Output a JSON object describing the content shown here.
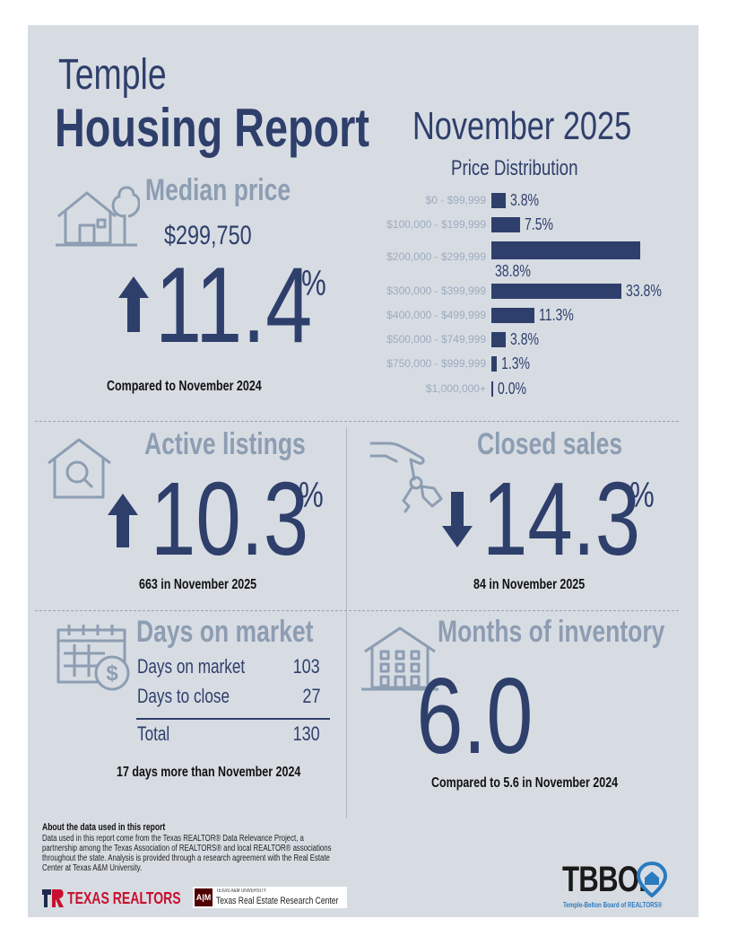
{
  "header": {
    "city": "Temple",
    "title": "Housing Report",
    "period": "November 2025"
  },
  "median_price": {
    "label": "Median price",
    "value": "$299,750",
    "change": "11.4",
    "change_unit": "%",
    "direction": "up",
    "comparison": "Compared to November 2024"
  },
  "price_distribution": {
    "title": "Price Distribution",
    "rows": [
      {
        "range": "$0 - $99,999",
        "percent": 3.8,
        "label": "3.8%"
      },
      {
        "range": "$100,000 - $199,999",
        "percent": 7.5,
        "label": "7.5%"
      },
      {
        "range": "$200,000 - $299,999",
        "percent": 38.8,
        "label": "38.8%"
      },
      {
        "range": "$300,000 - $399,999",
        "percent": 33.8,
        "label": "33.8%"
      },
      {
        "range": "$400,000 - $499,999",
        "percent": 11.3,
        "label": "11.3%"
      },
      {
        "range": "$500,000 - $749,999",
        "percent": 3.8,
        "label": "3.8%"
      },
      {
        "range": "$750,000 - $999,999",
        "percent": 1.3,
        "label": "1.3%"
      },
      {
        "range": "$1,000,000+",
        "percent": 0.0,
        "label": "0.0%"
      }
    ]
  },
  "active_listings": {
    "label": "Active listings",
    "change": "10.3",
    "change_unit": "%",
    "direction": "up",
    "note": "663 in November 2025"
  },
  "closed_sales": {
    "label": "Closed sales",
    "change": "14.3",
    "change_unit": "%",
    "direction": "down",
    "note": "84 in November 2025"
  },
  "days_on_market": {
    "label": "Days on market",
    "rows": [
      {
        "name": "Days on market",
        "value": "103"
      },
      {
        "name": "Days to close",
        "value": "27"
      }
    ],
    "total_label": "Total",
    "total_value": "130",
    "note": "17 days more than November 2024"
  },
  "months_inventory": {
    "label": "Months of inventory",
    "value": "6.0",
    "note": "Compared to 5.6 in November 2024"
  },
  "footer": {
    "about_title": "About the data used in this report",
    "about_text": "Data used in this report come from the Texas REALTOR® Data Relevance Project, a partnership among the Texas Association of REALTORS® and local REALTOR® associations throughout the state. Analysis is provided through a research agreement with the Real Estate Center at Texas A&M University.",
    "texas_realtors": "TEXAS REALTORS",
    "tamu_small": "TEXAS A&M UNIVERSITY",
    "tamu_center": "Texas Real Estate Research Center",
    "tbbor_logo_text": "TBBOR",
    "tbbor_name": "Temple-Belton Board of REALTORS®"
  },
  "colors": {
    "navy": "#2f3f6b",
    "steel": "#8d9db2",
    "panel": "#d7dce3",
    "texas_red": "#c8102e",
    "tamu_maroon": "#500000",
    "tbbor_blue": "#2b7bbf"
  }
}
